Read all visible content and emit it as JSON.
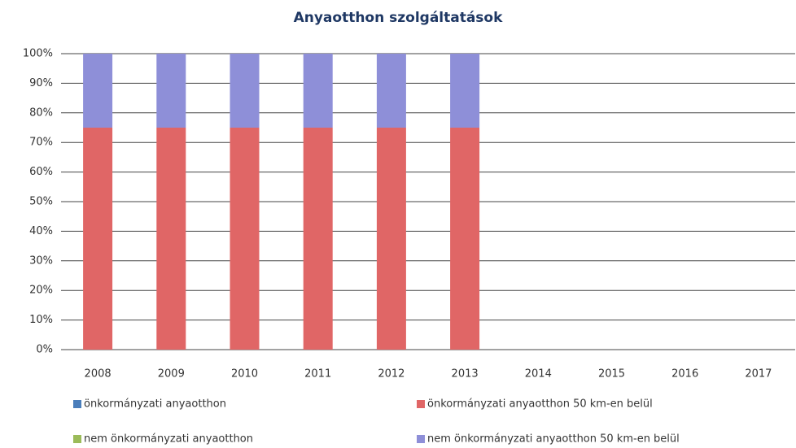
{
  "chart_data": {
    "type": "stacked_bar",
    "title": "Anyaotthon szolgáltatások",
    "categories": [
      "2008",
      "2009",
      "2010",
      "2011",
      "2012",
      "2013",
      "2014",
      "2015",
      "2016",
      "2017"
    ],
    "series": [
      {
        "name": "önkormányzati anyaotthon",
        "color": "#4a7ebb",
        "values": [
          0,
          0,
          0,
          0,
          0,
          0,
          null,
          null,
          null,
          null
        ]
      },
      {
        "name": "önkormányzati anyaotthon 50 km-en belül",
        "color": "#e06666",
        "values": [
          75,
          75,
          75,
          75,
          75,
          75,
          null,
          null,
          null,
          null
        ]
      },
      {
        "name": "nem önkormányzati anyaotthon",
        "color": "#9bbb59",
        "values": [
          0,
          0,
          0,
          0,
          0,
          0,
          null,
          null,
          null,
          null
        ]
      },
      {
        "name": "nem önkormányzati anyaotthon 50 km-en belül",
        "color": "#8e8fd8",
        "values": [
          25,
          25,
          25,
          25,
          25,
          25,
          null,
          null,
          null,
          null
        ]
      }
    ],
    "ylim": [
      0,
      100
    ],
    "yticks": [
      {
        "value": 0,
        "label": "0%"
      },
      {
        "value": 10,
        "label": "10%"
      },
      {
        "value": 20,
        "label": "20%"
      },
      {
        "value": 30,
        "label": "30%"
      },
      {
        "value": 40,
        "label": "40%"
      },
      {
        "value": 50,
        "label": "50%"
      },
      {
        "value": 60,
        "label": "60%"
      },
      {
        "value": 70,
        "label": "70%"
      },
      {
        "value": 80,
        "label": "80%"
      },
      {
        "value": 90,
        "label": "90%"
      },
      {
        "value": 100,
        "label": "100%"
      }
    ],
    "grid": true
  }
}
